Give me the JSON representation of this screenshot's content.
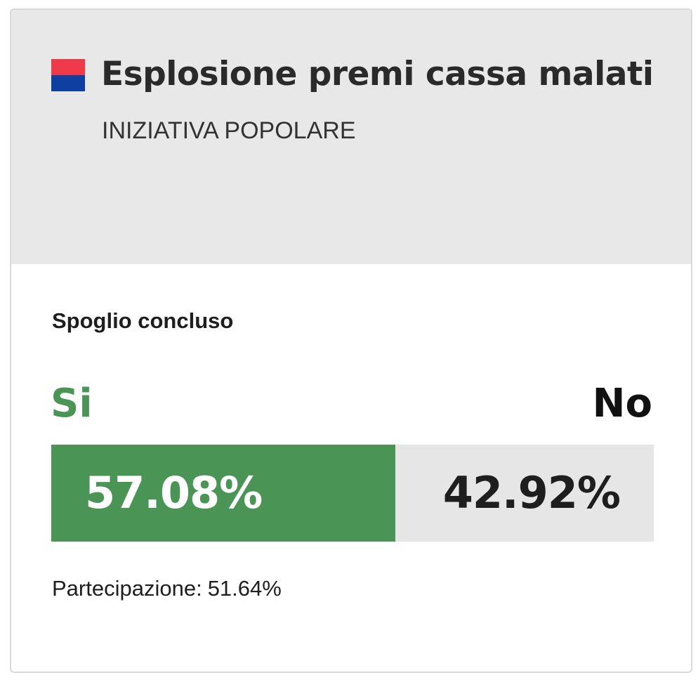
{
  "card": {
    "title": "Esplosione premi cassa malati",
    "subtitle": "INIZIATIVA POPOLARE",
    "flag": {
      "icon": "ticino-flag-icon",
      "top_color": "#ef3a4a",
      "bottom_color": "#0f3fa0"
    }
  },
  "result": {
    "status": "Spoglio concluso",
    "yes_label": "Si",
    "no_label": "No",
    "yes_percent_text": "57.08%",
    "no_percent_text": "42.92%",
    "yes_share": 57.08,
    "no_share": 42.92,
    "turnout_label": "Partecipazione:",
    "turnout_value": "51.64%"
  },
  "colors": {
    "yes": "#4a9456",
    "no_track": "#e6e6e6",
    "header_bg": "#e8e8e8"
  }
}
